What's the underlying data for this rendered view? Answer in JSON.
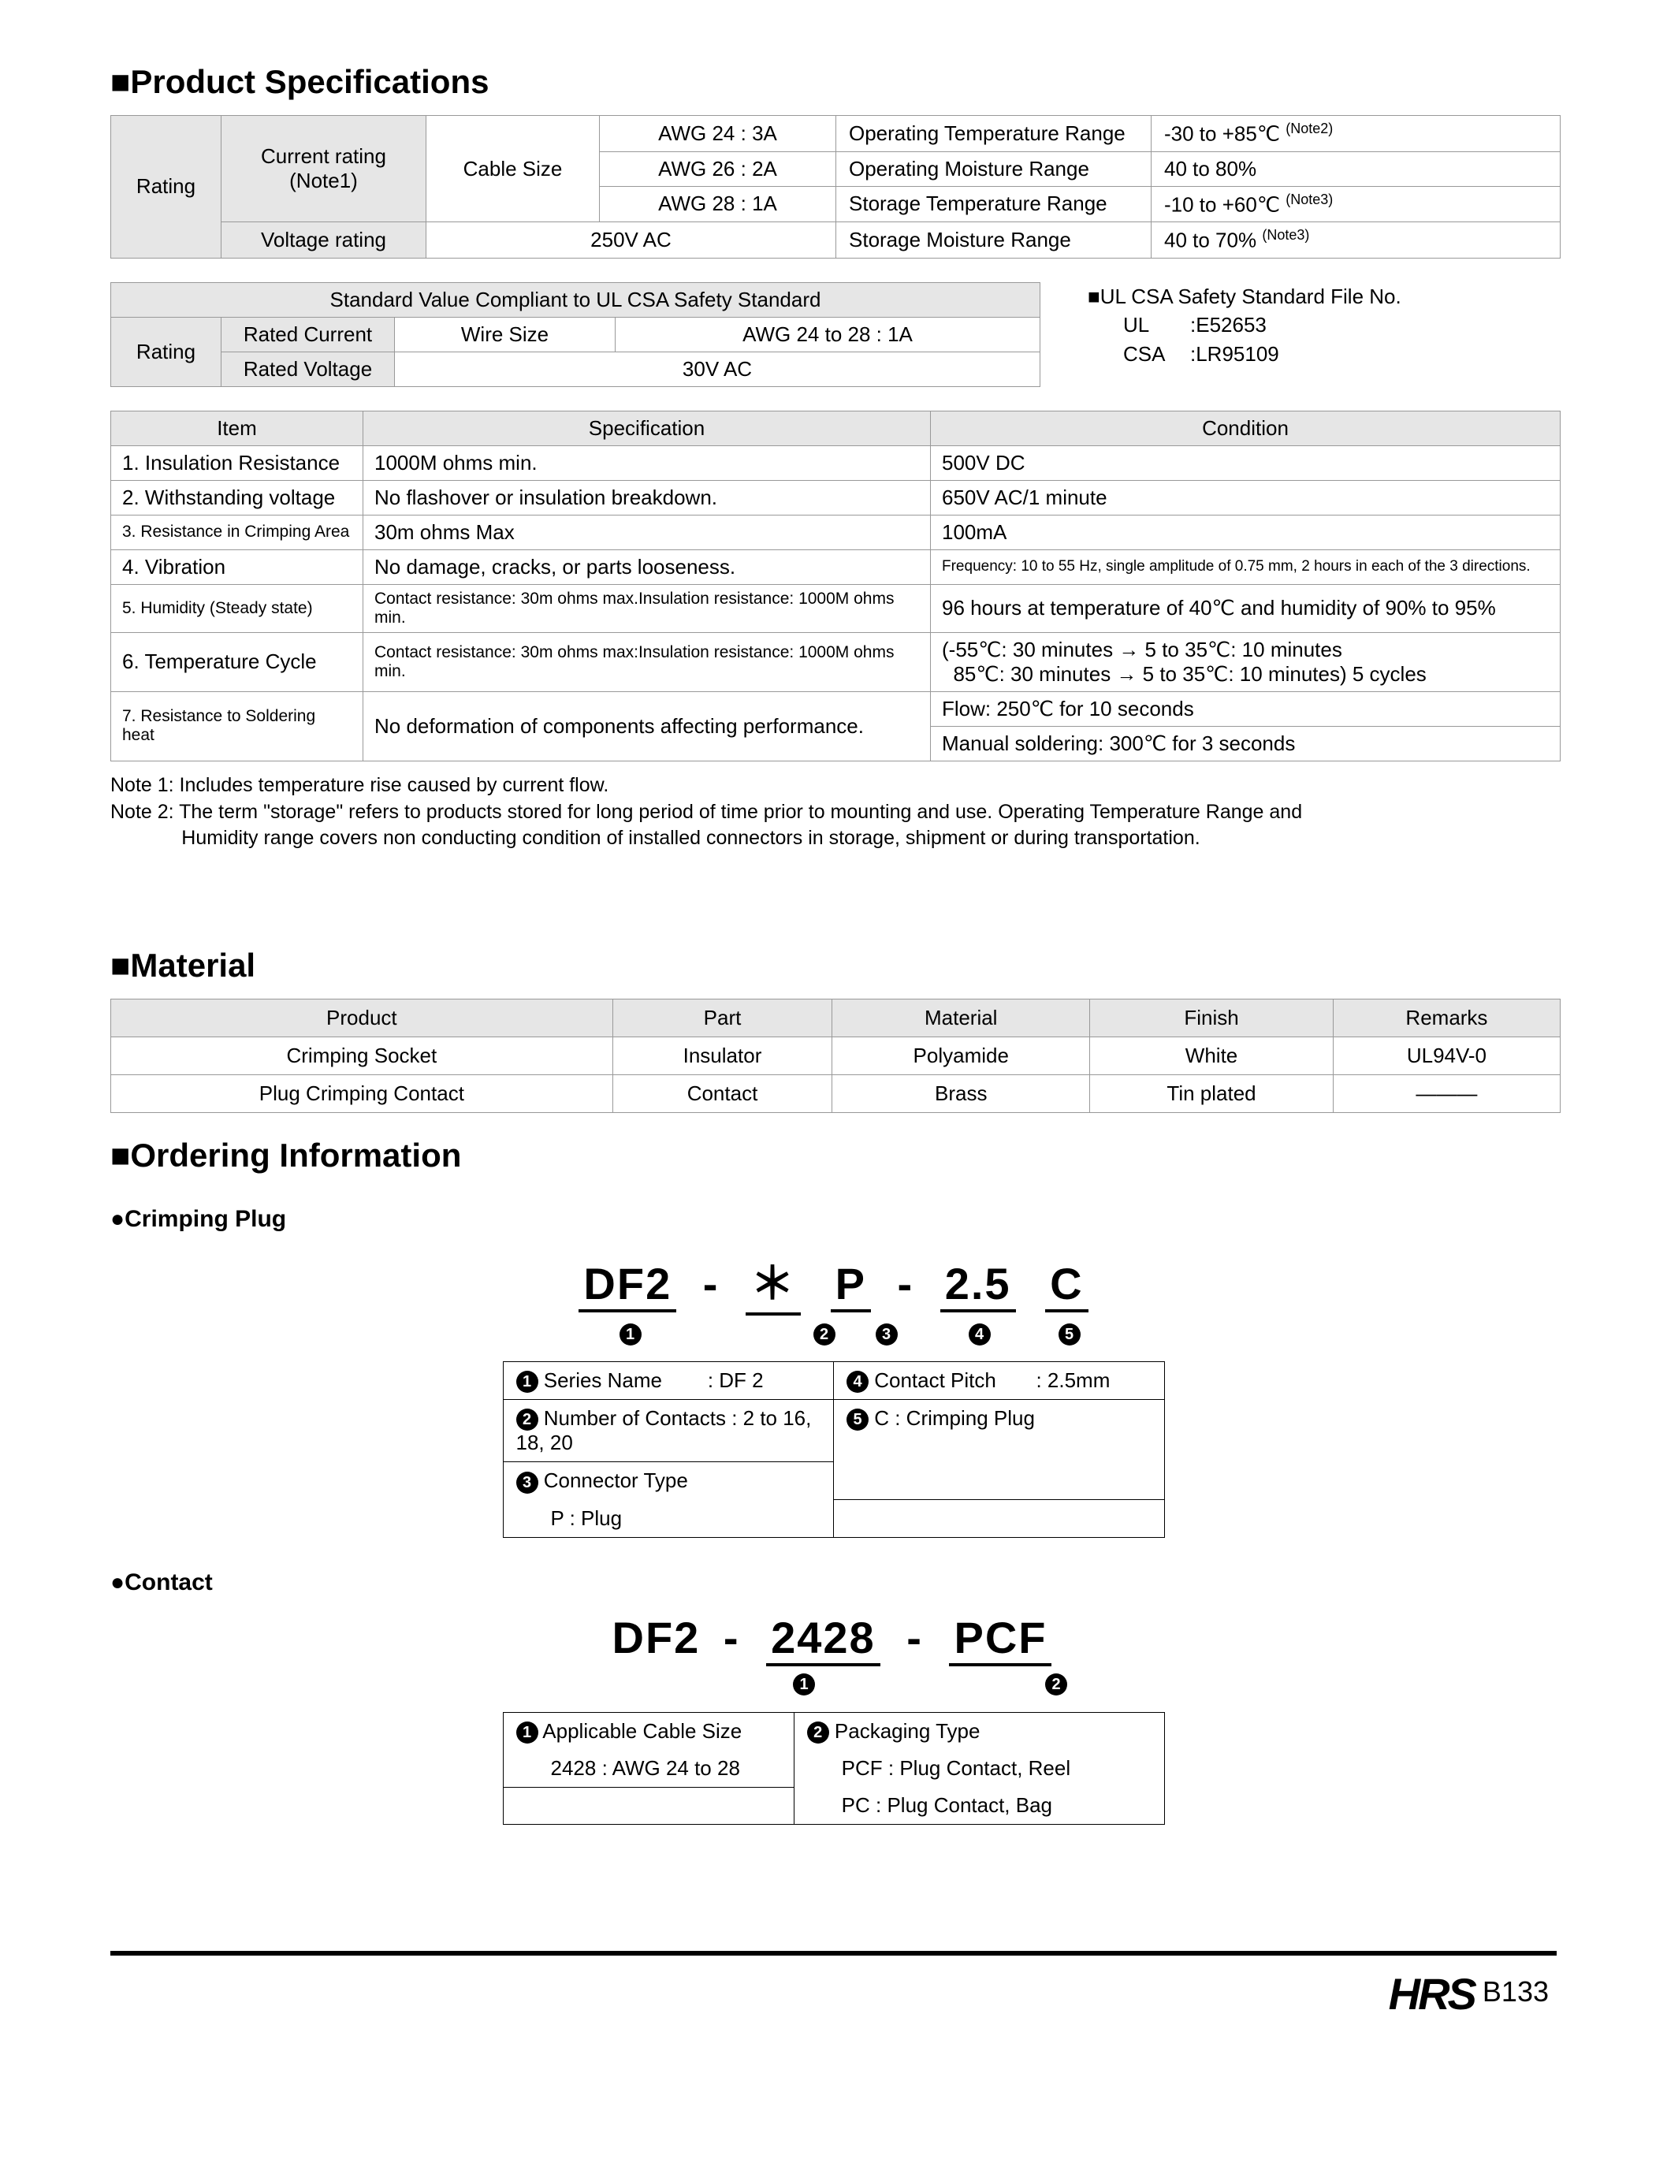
{
  "sections": {
    "product_spec": "Product Specifications",
    "material": "Material",
    "ordering": "Ordering Information"
  },
  "rating_table": {
    "row_label": "Rating",
    "current_rating": "Current rating",
    "current_note": "(Note1)",
    "cable_size": "Cable Size",
    "awg": [
      "AWG  24 : 3A",
      "AWG  26 : 2A",
      "AWG  28 : 1A"
    ],
    "voltage_rating": "Voltage rating",
    "voltage_value": "250V AC",
    "env": [
      {
        "label": "Operating Temperature Range",
        "value": "-30 to +85℃",
        "note": "(Note2)"
      },
      {
        "label": "Operating Moisture Range",
        "value": "40 to 80%",
        "note": ""
      },
      {
        "label": "Storage Temperature Range",
        "value": "-10 to +60℃",
        "note": "(Note3)"
      },
      {
        "label": "Storage Moisture Range",
        "value": "40 to 70%",
        "note": "(Note3)"
      }
    ]
  },
  "ul_table": {
    "title": "Standard Value Compliant to UL CSA Safety Standard",
    "rating": "Rating",
    "rated_current": "Rated Current",
    "wire_size": "Wire Size",
    "wire_value": "AWG  24 to 28 : 1A",
    "rated_voltage": "Rated Voltage",
    "voltage_value": "30V AC"
  },
  "ul_file": {
    "title": "UL CSA Safety Standard File No.",
    "ul_label": "UL",
    "ul_value": ":E52653",
    "csa_label": "CSA",
    "csa_value": ":LR95109"
  },
  "spec_table": {
    "headers": [
      "Item",
      "Specification",
      "Condition"
    ],
    "rows": [
      {
        "item": "1. Insulation Resistance",
        "spec": "1000M ohms min.",
        "cond": "500V DC"
      },
      {
        "item": "2. Withstanding voltage",
        "spec": "No flashover or insulation breakdown.",
        "cond": "650V AC/1 minute"
      },
      {
        "item": "3. Resistance in Crimping Area",
        "item_small": true,
        "spec": "30m ohms Max",
        "cond": "100mA"
      },
      {
        "item": "4. Vibration",
        "spec": "No damage, cracks, or parts looseness.",
        "cond": "Frequency: 10 to 55 Hz, single amplitude of 0.75 mm, 2 hours in each of the 3 directions.",
        "cond_small": true
      },
      {
        "item": "5. Humidity (Steady state)",
        "item_small": true,
        "spec": "Contact resistance: 30m ohms max.Insulation resistance: 1000M ohms min.",
        "spec_small": true,
        "cond": "96 hours at temperature of 40℃ and humidity of 90% to 95%"
      }
    ],
    "row6": {
      "item": "6. Temperature Cycle",
      "spec": "Contact resistance: 30m ohms max:Insulation resistance: 1000M ohms min.",
      "cond1": "(-55℃: 30 minutes → 5 to 35℃: 10 minutes",
      "cond2": "  85℃: 30 minutes → 5 to 35℃: 10 minutes) 5 cycles"
    },
    "row7": {
      "item": "7. Resistance to Soldering heat",
      "spec": "No deformation of components affecting performance.",
      "cond1": "Flow: 250℃ for 10 seconds",
      "cond2": "Manual soldering: 300℃ for 3 seconds"
    }
  },
  "notes": {
    "n1": "Note 1: Includes temperature rise caused by current flow.",
    "n2a": "Note 2: The term \"storage\" refers to products stored for long period of time prior to mounting and use. Operating Temperature Range and",
    "n2b": "             Humidity range covers non conducting condition of installed connectors in storage, shipment or during transportation."
  },
  "material_table": {
    "headers": [
      "Product",
      "Part",
      "Material",
      "Finish",
      "Remarks"
    ],
    "rows": [
      [
        "Crimping Socket",
        "Insulator",
        "Polyamide",
        "White",
        "UL94V-0"
      ],
      [
        "Plug Crimping Contact",
        "Contact",
        "Brass",
        "Tin plated",
        "———"
      ]
    ]
  },
  "ordering": {
    "crimping_plug": {
      "title": "Crimping Plug",
      "segments": [
        "DF2",
        "＊",
        "P",
        "2.5",
        "C"
      ],
      "pn_num_widths": [
        152,
        130,
        80,
        78,
        158,
        70
      ],
      "legend": [
        {
          "n": "1",
          "l": "Series Name",
          "v": ": DF 2"
        },
        {
          "n": "2",
          "l": "Number of Contacts",
          "v": ": 2 to 16, 18, 20"
        },
        {
          "n": "3",
          "l": "Connector Type",
          "v": ""
        },
        {
          "n": "",
          "l": "P : Plug",
          "v": "",
          "indent": true
        },
        {
          "n": "4",
          "l": "Contact Pitch",
          "v": ": 2.5mm"
        },
        {
          "n": "5",
          "l": "C : Crimping Plug",
          "v": ""
        }
      ]
    },
    "contact": {
      "title": "Contact",
      "segments": [
        "DF2",
        "2428",
        "PCF"
      ],
      "pn_num_widths": [
        225,
        160,
        180,
        120
      ],
      "legend_left": [
        {
          "n": "1",
          "l": "Applicable Cable Size"
        },
        {
          "n": "",
          "l": "2428 : AWG  24 to 28",
          "indent": true
        }
      ],
      "legend_right": [
        {
          "n": "2",
          "l": "Packaging Type"
        },
        {
          "n": "",
          "l": "PCF : Plug Contact, Reel",
          "indent": true
        },
        {
          "n": "",
          "l": "PC   : Plug Contact, Bag",
          "indent": true
        }
      ]
    }
  },
  "footer": {
    "logo": "HRS",
    "page": "B133"
  }
}
